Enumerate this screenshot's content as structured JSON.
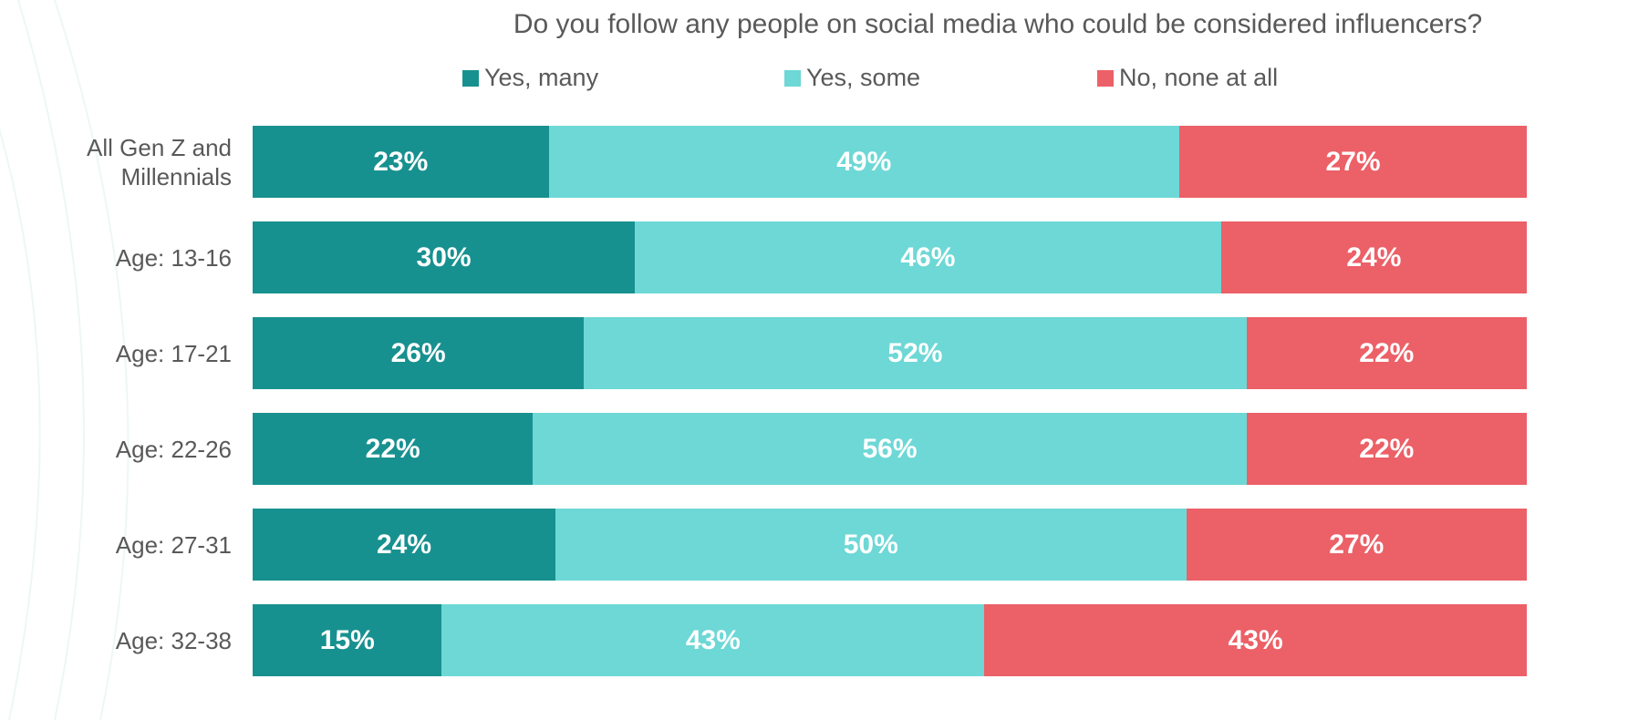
{
  "chart_data": {
    "type": "bar",
    "orientation": "horizontal",
    "stacked": true,
    "title": "Do you follow any people on social media who could be considered influencers?",
    "categories": [
      "All Gen Z and Millennials",
      "Age: 13-16",
      "Age: 17-21",
      "Age: 22-26",
      "Age: 27-31",
      "Age: 32-38"
    ],
    "series": [
      {
        "name": "Yes, many",
        "color": "#17918f",
        "values": [
          23,
          30,
          26,
          22,
          24,
          15
        ],
        "labels": [
          "23%",
          "30%",
          "26%",
          "22%",
          "24%",
          "15%"
        ]
      },
      {
        "name": "Yes, some",
        "color": "#6dd8d6",
        "values": [
          49,
          46,
          52,
          56,
          50,
          43
        ],
        "labels": [
          "49%",
          "46%",
          "52%",
          "56%",
          "50%",
          "43%"
        ]
      },
      {
        "name": "No, none at all",
        "color": "#ec6067",
        "values": [
          27,
          24,
          22,
          22,
          27,
          43
        ],
        "labels": [
          "27%",
          "24%",
          "22%",
          "22%",
          "27%",
          "43%"
        ]
      }
    ],
    "legend_position": "top",
    "xlabel": "",
    "ylabel": "",
    "grid": false
  }
}
